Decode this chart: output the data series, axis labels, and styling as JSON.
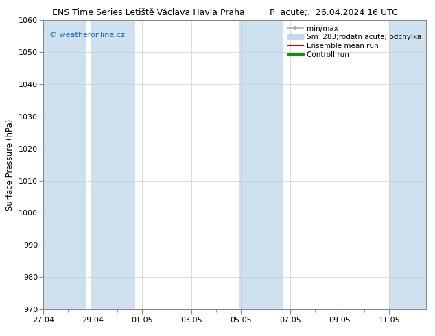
{
  "title_left": "ENS Time Series Letiště Václava Havla Praha",
  "title_right": "P  acute;.  26.04.2024 16 UTC",
  "ylabel": "Surface Pressure (hPa)",
  "ylim": [
    970,
    1060
  ],
  "yticks": [
    970,
    980,
    990,
    1000,
    1010,
    1020,
    1030,
    1040,
    1050,
    1060
  ],
  "xtick_labels": [
    "27.04",
    "29.04",
    "01.05",
    "03.05",
    "05.05",
    "07.05",
    "09.05",
    "11.05"
  ],
  "xtick_positions": [
    0,
    2,
    4,
    6,
    8,
    10,
    12,
    14
  ],
  "xlim": [
    0,
    15.5
  ],
  "watermark": "© weatheronline.cz",
  "watermark_color": "#1a6ab5",
  "bg_color": "#ffffff",
  "plot_bg_color": "#ffffff",
  "shaded_color": "#cfe0ef",
  "shaded_bands": [
    {
      "x_start": -0.1,
      "x_end": 1.7
    },
    {
      "x_start": 1.9,
      "x_end": 3.7
    },
    {
      "x_start": 7.9,
      "x_end": 9.7
    },
    {
      "x_start": 14.0,
      "x_end": 15.6
    }
  ],
  "figsize": [
    6.34,
    4.9
  ],
  "dpi": 100,
  "title_fontsize": 9,
  "tick_fontsize": 8,
  "ylabel_fontsize": 8.5,
  "legend_fontsize": 7.5,
  "legend_minmax_color": "#aaaaaa",
  "legend_sm_color": "#c5d8ed",
  "legend_ens_color": "#dd0000",
  "legend_ctrl_color": "#008800"
}
